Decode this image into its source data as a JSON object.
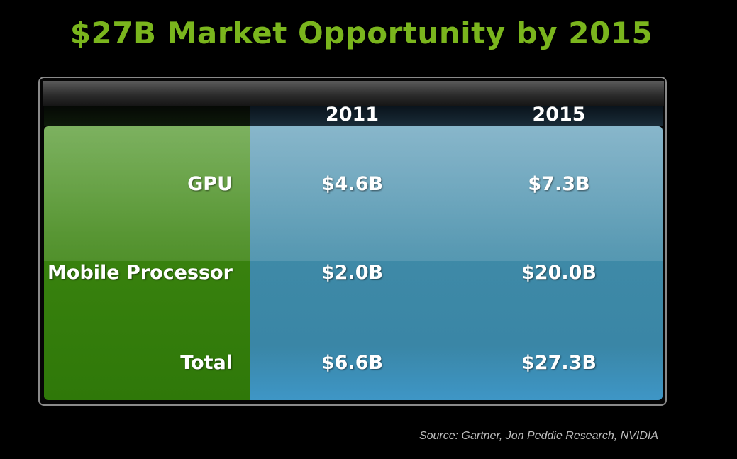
{
  "title": "$27B Market Opportunity by 2015",
  "source": "Source:  Gartner, Jon Peddie Research, NVIDIA",
  "colors": {
    "title": "#7ab51d",
    "label_column": "#3a830f",
    "data_cells": "#3f8aa7",
    "background": "#000000"
  },
  "chart_data": {
    "type": "table",
    "title": "$27B Market Opportunity by 2015",
    "columns": [
      "2011",
      "2015"
    ],
    "rows": [
      {
        "label": "GPU",
        "values": [
          "$4.6B",
          "$7.3B"
        ]
      },
      {
        "label": "Mobile Processor",
        "values": [
          "$2.0B",
          "$20.0B"
        ]
      },
      {
        "label": "Total",
        "values": [
          "$6.6B",
          "$27.3B"
        ]
      }
    ]
  }
}
